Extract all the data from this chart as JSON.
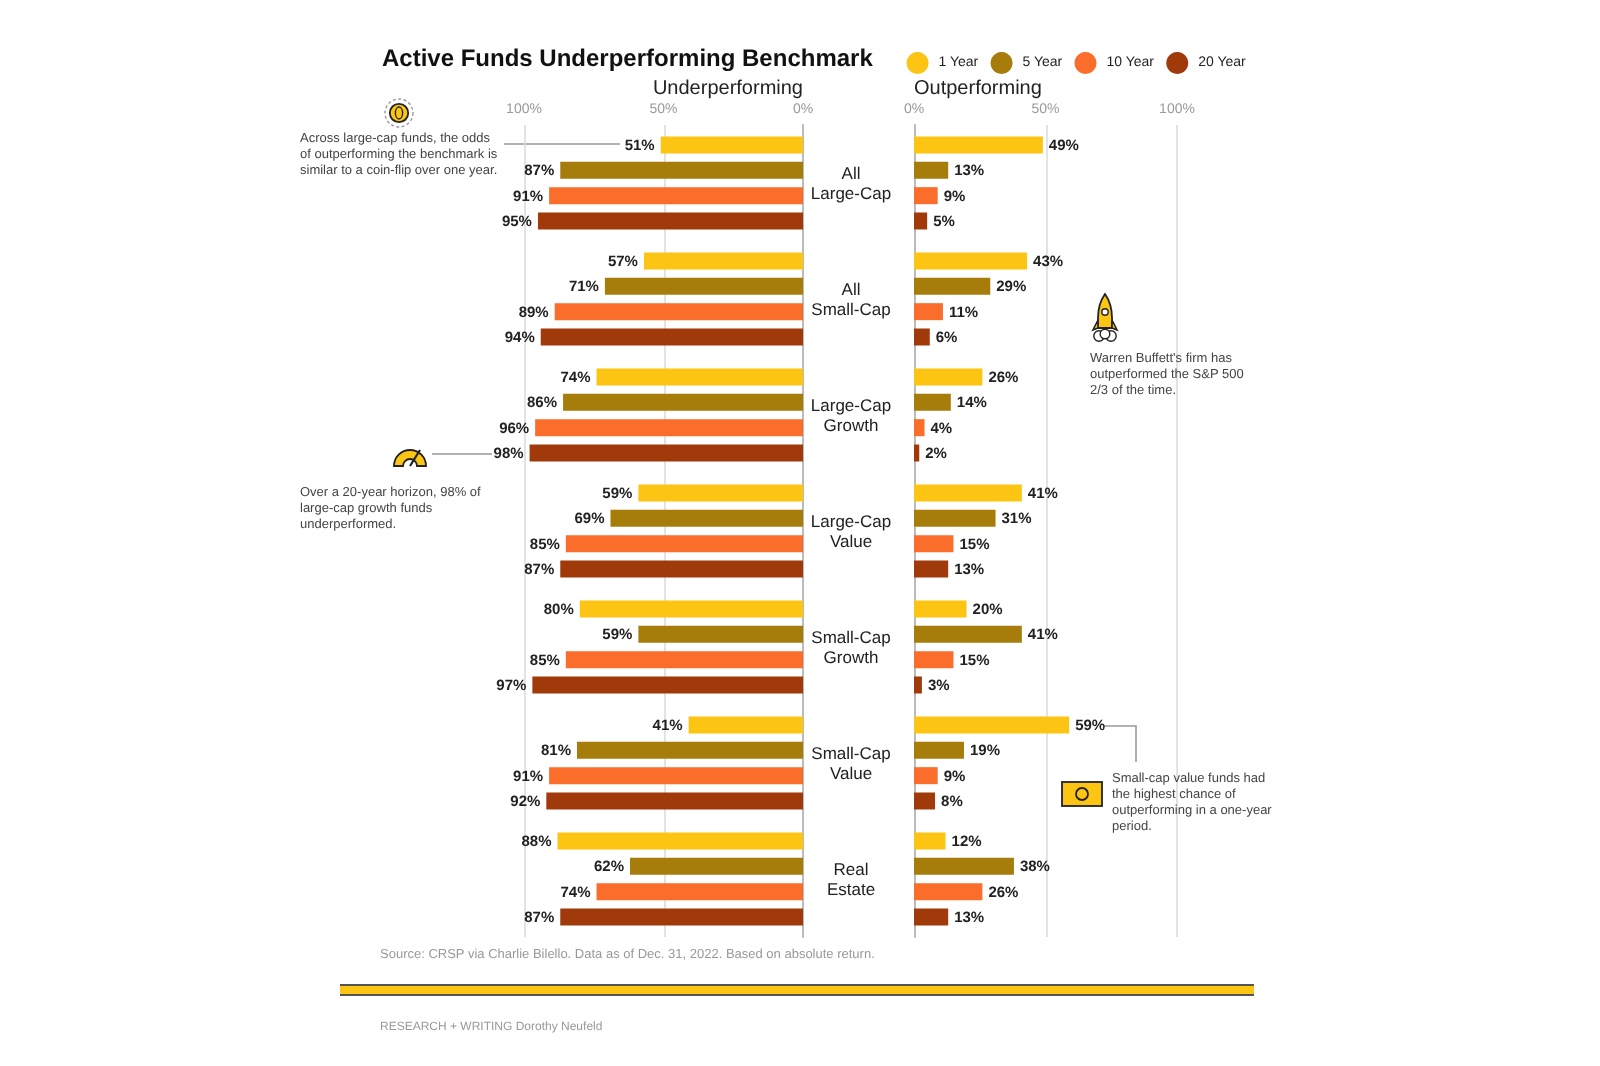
{
  "chart_data": [
    {
      "type": "bar",
      "orientation": "horizontal",
      "title": "Active Funds Underperforming Benchmark",
      "xlabel": "Underperforming",
      "categories": [
        "All Large-Cap",
        "All Small-Cap",
        "Large-Cap Growth",
        "Large-Cap Value",
        "Small-Cap Growth",
        "Small-Cap Value",
        "Real Estate"
      ],
      "series": [
        {
          "color": "#fdc513",
          "values": [
            51,
            57,
            74,
            59,
            80,
            41,
            88
          ],
          "value_labels": [
            "51%",
            "57%",
            "74%",
            "59%",
            "80%",
            "41%",
            "88%"
          ]
        },
        {
          "color": "#a67c0b",
          "values": [
            87,
            71,
            86,
            69,
            59,
            81,
            62
          ],
          "value_labels": [
            "87%",
            "71%",
            "86%",
            "69%",
            "59%",
            "81%",
            "62%"
          ]
        },
        {
          "color": "#fa6d2b",
          "values": [
            91,
            89,
            96,
            85,
            85,
            91,
            74
          ],
          "value_labels": [
            "91%",
            "89%",
            "96%",
            "85%",
            "85%",
            "91%",
            "74%"
          ]
        },
        {
          "color": "#a03a0b",
          "values": [
            95,
            94,
            98,
            87,
            97,
            92,
            87
          ],
          "value_labels": [
            "95%",
            "94%",
            "98%",
            "87%",
            "97%",
            "92%",
            "87%"
          ]
        }
      ],
      "xlim": [
        100,
        0
      ],
      "xticks": [
        {
          "value": 100,
          "label": "100%"
        },
        {
          "value": 50,
          "label": "50%"
        },
        {
          "value": 0,
          "label": "0%"
        }
      ],
      "grid": "x",
      "annotations": [
        "Across large-cap funds, the odds of outperforming the benchmark is similar to a coin-flip over one year.",
        "Over a 20-year horizon, 98% of large-cap growth funds underperformed.",
        "Source: CRSP via Charlie Bilello. Data as of Dec. 31, 2022. Based on absolute return.",
        "RESEARCH + WRITING Dorothy Neufeld"
      ]
    },
    {
      "type": "bar",
      "orientation": "horizontal",
      "xlabel": "Outperforming",
      "categories": [
        null,
        null,
        null,
        null,
        null,
        null,
        null
      ],
      "series": [
        {
          "name": "1 Year",
          "color": "#fdc513",
          "values": [
            49,
            43,
            26,
            41,
            20,
            59,
            12
          ],
          "value_labels": [
            "49%",
            "43%",
            "26%",
            "41%",
            "20%",
            "59%",
            "12%"
          ]
        },
        {
          "name": "5 Year",
          "color": "#a67c0b",
          "values": [
            13,
            29,
            14,
            31,
            41,
            19,
            38
          ],
          "value_labels": [
            "13%",
            "29%",
            "14%",
            "31%",
            "41%",
            "19%",
            "38%"
          ]
        },
        {
          "name": "10 Year",
          "color": "#fa6d2b",
          "values": [
            9,
            11,
            4,
            15,
            15,
            9,
            26
          ],
          "value_labels": [
            "9%",
            "11%",
            "4%",
            "15%",
            "15%",
            "9%",
            "26%"
          ]
        },
        {
          "name": "20 Year",
          "color": "#a03a0b",
          "values": [
            5,
            6,
            2,
            13,
            3,
            8,
            13
          ],
          "value_labels": [
            "5%",
            "6%",
            "2%",
            "13%",
            "3%",
            "8%",
            "13%"
          ]
        }
      ],
      "xlim": [
        0,
        100
      ],
      "xticks": [
        {
          "value": 0,
          "label": "0%"
        },
        {
          "value": 50,
          "label": "50%"
        },
        {
          "value": 100,
          "label": "100%"
        }
      ],
      "grid": "x",
      "legend": "top right",
      "annotations": [
        "Warren Buffett's firm has outperformed the S&P 500 2/3 of the time.",
        "Small-cap value funds had the highest chance of outperforming in a one-year period."
      ]
    }
  ]
}
